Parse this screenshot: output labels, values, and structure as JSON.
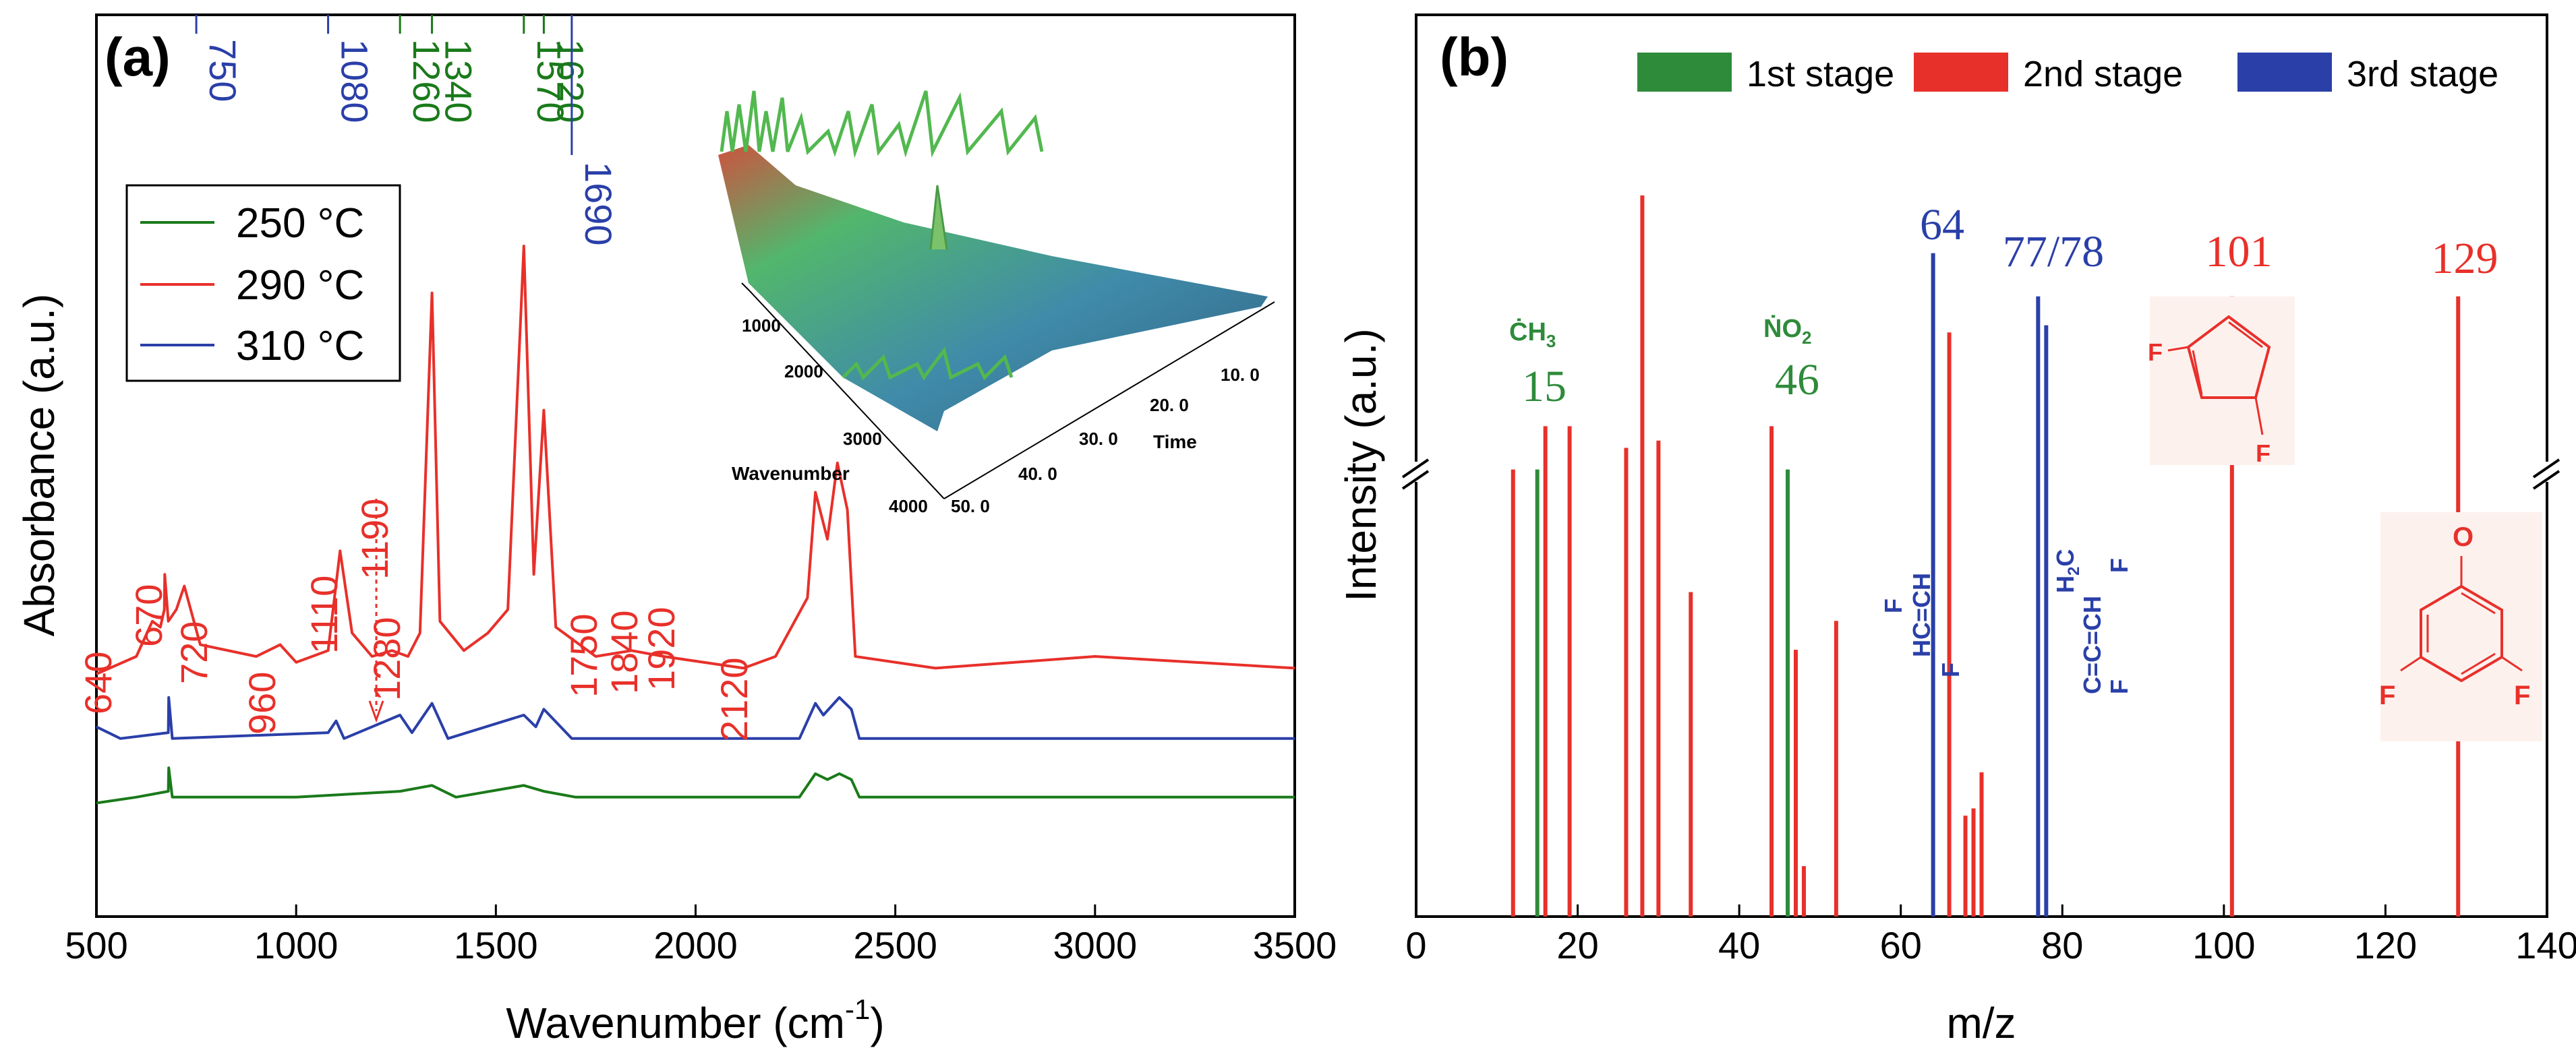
{
  "chart_data": [
    {
      "type": "line",
      "panel_label": "(a)",
      "xlabel": "Wavenumber (cm",
      "xlabel_sup": "-1",
      "xlabel_close": ")",
      "ylabel": "Absorbance (a.u.)",
      "xlim": [
        500,
        3500
      ],
      "xticks": [
        "500",
        "1000",
        "1500",
        "2000",
        "2500",
        "3000",
        "3500"
      ],
      "legend": [
        {
          "label": "250 °C",
          "color": "#1a7a1a"
        },
        {
          "label": "290 °C",
          "color": "#e8302a"
        },
        {
          "label": "310 °C",
          "color": "#2a3fa8"
        }
      ],
      "series": [
        {
          "name": "250 °C",
          "color": "#1a7a1a",
          "baseline": 0.06,
          "points": [
            [
              500,
              0.05
            ],
            [
              600,
              0.06
            ],
            [
              680,
              0.07
            ],
            [
              681,
              0.11
            ],
            [
              690,
              0.06
            ],
            [
              1000,
              0.06
            ],
            [
              1260,
              0.07
            ],
            [
              1340,
              0.08
            ],
            [
              1400,
              0.06
            ],
            [
              1570,
              0.08
            ],
            [
              1620,
              0.07
            ],
            [
              1700,
              0.06
            ],
            [
              2260,
              0.06
            ],
            [
              2300,
              0.1
            ],
            [
              2330,
              0.09
            ],
            [
              2360,
              0.1
            ],
            [
              2390,
              0.09
            ],
            [
              2410,
              0.06
            ],
            [
              3500,
              0.06
            ]
          ]
        },
        {
          "name": "310 °C",
          "color": "#2a3fa8",
          "baseline": 0.16,
          "points": [
            [
              500,
              0.18
            ],
            [
              560,
              0.16
            ],
            [
              680,
              0.17
            ],
            [
              681,
              0.23
            ],
            [
              690,
              0.16
            ],
            [
              1080,
              0.17
            ],
            [
              1100,
              0.19
            ],
            [
              1120,
              0.16
            ],
            [
              1260,
              0.2
            ],
            [
              1290,
              0.17
            ],
            [
              1340,
              0.22
            ],
            [
              1380,
              0.16
            ],
            [
              1570,
              0.2
            ],
            [
              1600,
              0.18
            ],
            [
              1620,
              0.21
            ],
            [
              1690,
              0.16
            ],
            [
              2260,
              0.16
            ],
            [
              2300,
              0.22
            ],
            [
              2320,
              0.2
            ],
            [
              2360,
              0.23
            ],
            [
              2390,
              0.21
            ],
            [
              2410,
              0.16
            ],
            [
              3500,
              0.16
            ]
          ]
        },
        {
          "name": "290 °C",
          "color": "#e8302a",
          "baseline": 0.27,
          "points": [
            [
              500,
              0.27
            ],
            [
              600,
              0.3
            ],
            [
              640,
              0.36
            ],
            [
              660,
              0.35
            ],
            [
              670,
              0.38
            ],
            [
              671,
              0.44
            ],
            [
              680,
              0.36
            ],
            [
              700,
              0.38
            ],
            [
              720,
              0.42
            ],
            [
              760,
              0.32
            ],
            [
              900,
              0.3
            ],
            [
              960,
              0.32
            ],
            [
              1000,
              0.29
            ],
            [
              1080,
              0.31
            ],
            [
              1110,
              0.48
            ],
            [
              1140,
              0.34
            ],
            [
              1190,
              0.3
            ],
            [
              1240,
              0.31
            ],
            [
              1280,
              0.3
            ],
            [
              1310,
              0.34
            ],
            [
              1340,
              0.92
            ],
            [
              1360,
              0.36
            ],
            [
              1420,
              0.31
            ],
            [
              1480,
              0.34
            ],
            [
              1530,
              0.38
            ],
            [
              1570,
              1.0
            ],
            [
              1595,
              0.44
            ],
            [
              1620,
              0.72
            ],
            [
              1650,
              0.35
            ],
            [
              1750,
              0.3
            ],
            [
              1840,
              0.31
            ],
            [
              1920,
              0.3
            ],
            [
              2120,
              0.28
            ],
            [
              2200,
              0.3
            ],
            [
              2280,
              0.4
            ],
            [
              2300,
              0.58
            ],
            [
              2330,
              0.5
            ],
            [
              2355,
              0.63
            ],
            [
              2380,
              0.55
            ],
            [
              2400,
              0.3
            ],
            [
              2600,
              0.28
            ],
            [
              3000,
              0.3
            ],
            [
              3500,
              0.28
            ]
          ]
        }
      ],
      "annotations": [
        {
          "text": "750",
          "x": 750,
          "color": "#2a3fa8",
          "group": "top"
        },
        {
          "text": "1080",
          "x": 1080,
          "color": "#2a3fa8",
          "group": "top"
        },
        {
          "text": "1260",
          "x": 1260,
          "color": "#1a7a1a",
          "group": "top"
        },
        {
          "text": "1340",
          "x": 1340,
          "color": "#1a7a1a",
          "group": "top"
        },
        {
          "text": "1570",
          "x": 1570,
          "color": "#1a7a1a",
          "group": "top"
        },
        {
          "text": "1620",
          "x": 1620,
          "color": "#1a7a1a",
          "group": "top"
        },
        {
          "text": "1690",
          "x": 1690,
          "color": "#2a3fa8",
          "group": "top"
        },
        {
          "text": "640",
          "x": 640,
          "color": "#e8302a",
          "group": "peak"
        },
        {
          "text": "670",
          "x": 670,
          "color": "#e8302a",
          "group": "peak"
        },
        {
          "text": "720",
          "x": 720,
          "color": "#e8302a",
          "group": "peak"
        },
        {
          "text": "960",
          "x": 960,
          "color": "#e8302a",
          "group": "peak"
        },
        {
          "text": "1110",
          "x": 1110,
          "color": "#e8302a",
          "group": "peak"
        },
        {
          "text": "1190",
          "x": 1190,
          "color": "#e8302a",
          "group": "peak"
        },
        {
          "text": "1280",
          "x": 1280,
          "color": "#e8302a",
          "group": "peak"
        },
        {
          "text": "1750",
          "x": 1750,
          "color": "#e8302a",
          "group": "peak"
        },
        {
          "text": "1840",
          "x": 1840,
          "color": "#e8302a",
          "group": "peak"
        },
        {
          "text": "1920",
          "x": 1920,
          "color": "#e8302a",
          "group": "peak"
        },
        {
          "text": "2120",
          "x": 2120,
          "color": "#e8302a",
          "group": "peak"
        }
      ],
      "inset": {
        "type": "surface-3d",
        "x_label": "Wavenumber",
        "y_label": "Time",
        "wavenumber_ticks": [
          "1000",
          "2000",
          "3000",
          "4000"
        ],
        "time_ticks": [
          "10. 0",
          "20. 0",
          "30. 0",
          "40. 0",
          "50. 0"
        ]
      }
    },
    {
      "type": "bar",
      "panel_label": "(b)",
      "xlabel": "m/z",
      "ylabel": "Intensity (a.u.)",
      "xlim": [
        0,
        140
      ],
      "xticks": [
        "0",
        "20",
        "40",
        "60",
        "80",
        "100",
        "120",
        "140"
      ],
      "axis_break": true,
      "legend": [
        {
          "label": "1st stage",
          "color": "#2e8b3a"
        },
        {
          "label": "2nd stage",
          "color": "#e8302a"
        },
        {
          "label": "3rd stage",
          "color": "#2a3fa8"
        }
      ],
      "bars": [
        {
          "x": 12,
          "value": 0.62,
          "stage": 2
        },
        {
          "x": 15,
          "value": 0.62,
          "stage": 1
        },
        {
          "x": 16,
          "value": 0.68,
          "stage": 2
        },
        {
          "x": 19,
          "value": 0.68,
          "stage": 2
        },
        {
          "x": 26,
          "value": 0.65,
          "stage": 2
        },
        {
          "x": 28,
          "value": 1.0,
          "stage": 2
        },
        {
          "x": 30,
          "value": 0.66,
          "stage": 2
        },
        {
          "x": 34,
          "value": 0.45,
          "stage": 2
        },
        {
          "x": 44,
          "value": 0.68,
          "stage": 2
        },
        {
          "x": 46,
          "value": 0.62,
          "stage": 1
        },
        {
          "x": 47,
          "value": 0.37,
          "stage": 2
        },
        {
          "x": 48,
          "value": 0.07,
          "stage": 2
        },
        {
          "x": 52,
          "value": 0.41,
          "stage": 2
        },
        {
          "x": 64,
          "value": 0.92,
          "stage": 3
        },
        {
          "x": 66,
          "value": 0.81,
          "stage": 2
        },
        {
          "x": 68,
          "value": 0.14,
          "stage": 2
        },
        {
          "x": 69,
          "value": 0.15,
          "stage": 2
        },
        {
          "x": 70,
          "value": 0.2,
          "stage": 2
        },
        {
          "x": 77,
          "value": 0.86,
          "stage": 3
        },
        {
          "x": 78,
          "value": 0.82,
          "stage": 3
        },
        {
          "x": 101,
          "value": 0.86,
          "stage": 2
        },
        {
          "x": 129,
          "value": 0.86,
          "stage": 2
        }
      ],
      "peak_labels": [
        {
          "text": "15",
          "x": 15,
          "color": "#2e8b3a",
          "species": "ĊH",
          "species_sub": "3"
        },
        {
          "text": "46",
          "x": 46,
          "color": "#2e8b3a",
          "species": "ṄO",
          "species_sub": "2"
        },
        {
          "text": "64",
          "x": 64,
          "color": "#2a3fa8"
        },
        {
          "text": "77/78",
          "x": 77.5,
          "color": "#2a3fa8"
        },
        {
          "text": "101",
          "x": 101,
          "color": "#e8302a"
        },
        {
          "text": "129",
          "x": 129,
          "color": "#e8302a"
        }
      ],
      "structures": {
        "m64": {
          "top": "F",
          "bottom": "HC=CH",
          "right": "F",
          "color": "#2a3fa8"
        },
        "m77": {
          "top": "H",
          "top_sub": "2",
          "top_rest": "C",
          "middle": "C=C=CH",
          "f_upper": "F",
          "f_lower": "F",
          "color": "#2a3fa8"
        },
        "m101": {
          "f_left": "F",
          "f_right": "F",
          "color": "#e8302a"
        },
        "m129": {
          "o_label": "O",
          "f_left": "F",
          "f_right": "F",
          "color": "#e8302a"
        }
      }
    }
  ]
}
